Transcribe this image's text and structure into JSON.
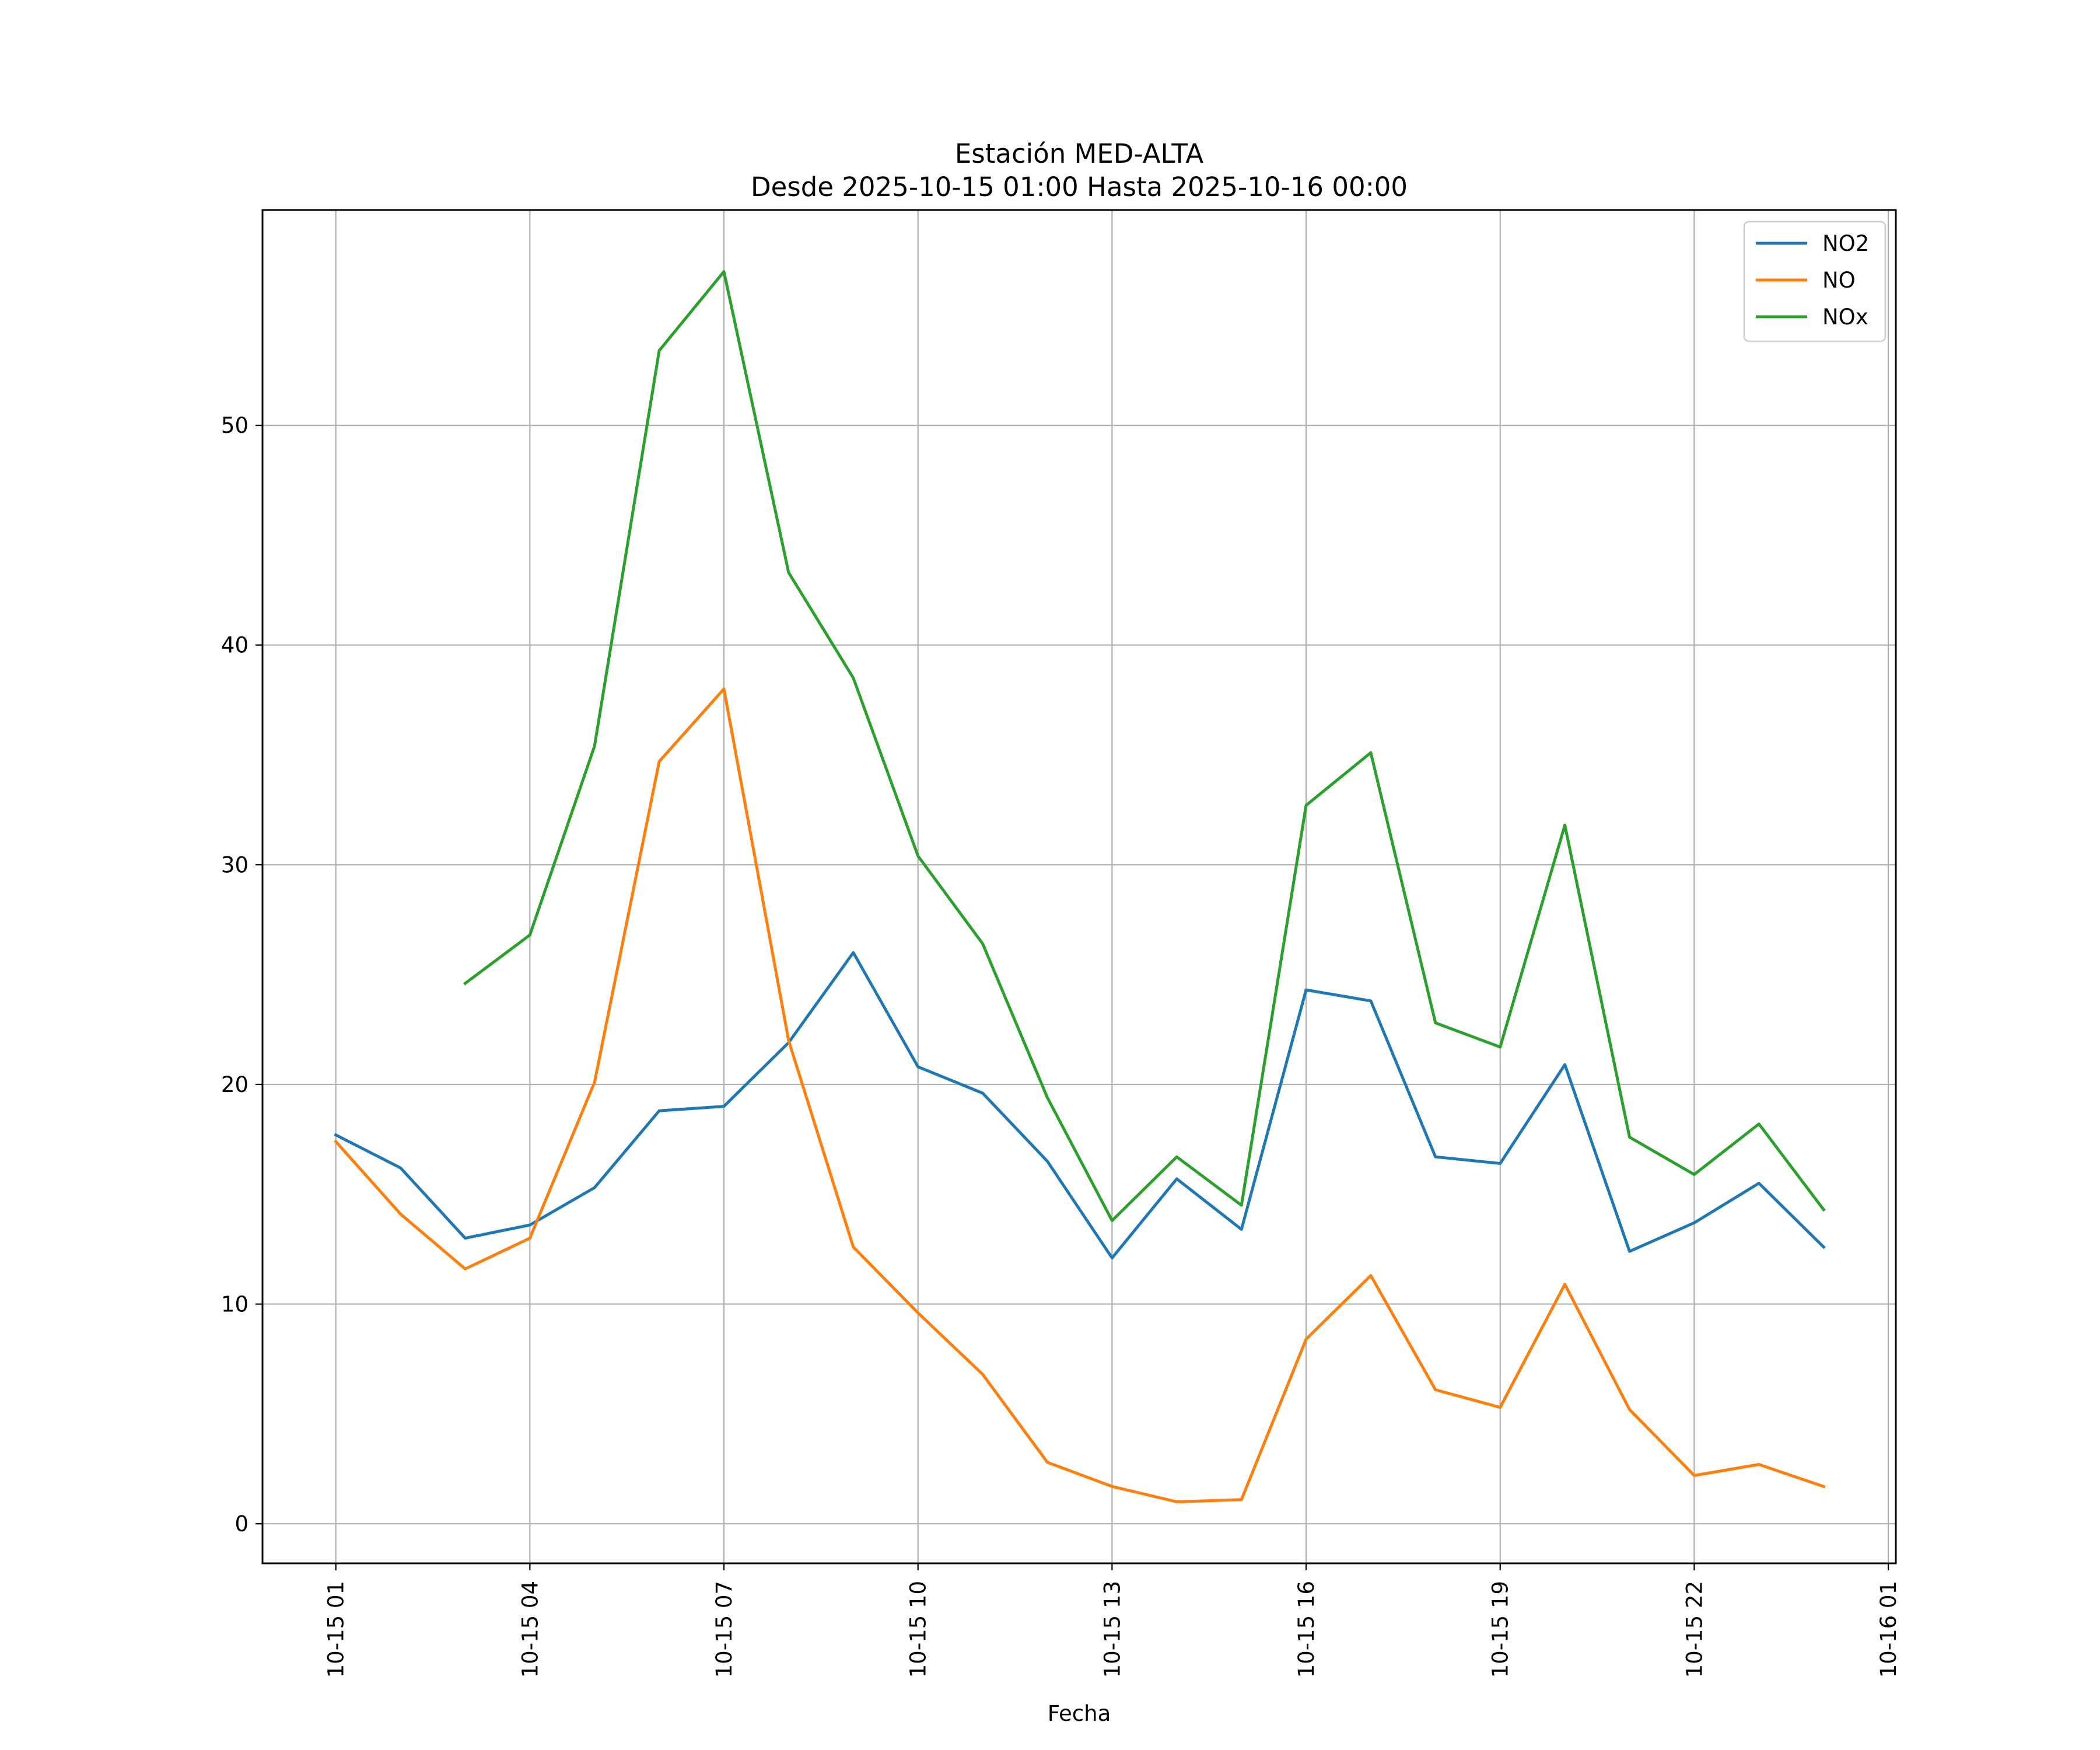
{
  "chart_data": {
    "type": "line",
    "title": "Estación MED-ALTA",
    "subtitle": "Desde 2025-10-15 01:00 Hasta 2025-10-16 00:00",
    "xlabel": "Fecha",
    "ylabel": "",
    "x": [
      "2025-10-15 01:00",
      "2025-10-15 02:00",
      "2025-10-15 03:00",
      "2025-10-15 04:00",
      "2025-10-15 05:00",
      "2025-10-15 06:00",
      "2025-10-15 07:00",
      "2025-10-15 08:00",
      "2025-10-15 09:00",
      "2025-10-15 10:00",
      "2025-10-15 11:00",
      "2025-10-15 12:00",
      "2025-10-15 13:00",
      "2025-10-15 14:00",
      "2025-10-15 15:00",
      "2025-10-15 16:00",
      "2025-10-15 17:00",
      "2025-10-15 18:00",
      "2025-10-15 19:00",
      "2025-10-15 20:00",
      "2025-10-15 21:00",
      "2025-10-15 22:00",
      "2025-10-15 23:00",
      "2025-10-16 00:00"
    ],
    "xlim": [
      "2025-10-14 23:52",
      "2025-10-16 01:07"
    ],
    "x_ticks": [
      "2025-10-15 01:00",
      "2025-10-15 04:00",
      "2025-10-15 07:00",
      "2025-10-15 10:00",
      "2025-10-15 13:00",
      "2025-10-15 16:00",
      "2025-10-15 19:00",
      "2025-10-15 22:00",
      "2025-10-16 01:00"
    ],
    "x_tick_labels": [
      "10-15 01",
      "10-15 04",
      "10-15 07",
      "10-15 10",
      "10-15 13",
      "10-15 16",
      "10-15 19",
      "10-15 22",
      "10-16 01"
    ],
    "ylim": [
      -1.8,
      59.8
    ],
    "y_ticks": [
      0,
      10,
      20,
      30,
      40,
      50
    ],
    "y_tick_labels": [
      "0",
      "10",
      "20",
      "30",
      "40",
      "50"
    ],
    "grid": true,
    "legend_position": "top-right",
    "series": [
      {
        "name": "NO2",
        "color": "#1f77b4",
        "values": [
          17.7,
          16.2,
          13.0,
          13.6,
          15.3,
          18.8,
          19.0,
          21.9,
          26.0,
          20.8,
          19.6,
          16.5,
          12.1,
          15.7,
          13.4,
          24.3,
          23.8,
          16.7,
          16.4,
          20.9,
          12.4,
          13.7,
          15.5,
          12.6
        ]
      },
      {
        "name": "NO",
        "color": "#ff7f0e",
        "values": [
          17.4,
          14.1,
          11.6,
          13.0,
          20.1,
          34.7,
          38.0,
          22.0,
          12.6,
          9.6,
          6.8,
          2.8,
          1.7,
          1.0,
          1.1,
          8.4,
          11.3,
          6.1,
          5.3,
          10.9,
          5.2,
          2.2,
          2.7,
          1.7
        ]
      },
      {
        "name": "NOx",
        "color": "#2ca02c",
        "values": [
          null,
          null,
          24.6,
          26.8,
          35.4,
          53.4,
          57.0,
          43.3,
          38.5,
          30.4,
          26.4,
          19.4,
          13.8,
          16.7,
          14.5,
          32.7,
          35.1,
          22.8,
          21.7,
          31.8,
          17.6,
          15.9,
          18.2,
          14.3
        ]
      }
    ]
  }
}
